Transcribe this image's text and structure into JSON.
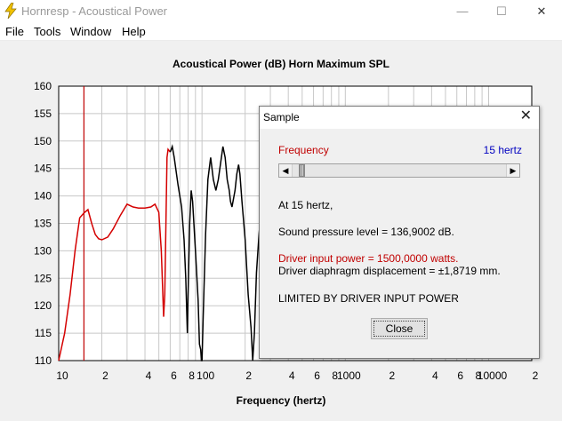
{
  "window": {
    "title": "Hornresp - Acoustical Power"
  },
  "window_controls": {
    "minimize": "—",
    "maximize": "☐",
    "close": "✕"
  },
  "menu": {
    "items": [
      "File",
      "Tools",
      "Window",
      "Help"
    ]
  },
  "colors": {
    "grid": "#c8c8c8",
    "curve_red": "#d40000",
    "curve_black": "#000000",
    "marker": "#c00000",
    "freq_value": "#0000c0"
  },
  "chart_data": {
    "type": "line",
    "title": "Acoustical Power (dB)   Horn    Maximum SPL",
    "xlabel": "Frequency (hertz)",
    "ylabel": "",
    "x_scale": "log",
    "xlim": [
      10,
      20000
    ],
    "ylim": [
      110,
      160
    ],
    "yticks": [
      "160",
      "155",
      "150",
      "145",
      "140",
      "135",
      "130",
      "125",
      "120",
      "115",
      "110"
    ],
    "xticks": [
      {
        "v": 10,
        "t": "10"
      },
      {
        "v": 20,
        "t": "2"
      },
      {
        "v": 40,
        "t": "4"
      },
      {
        "v": 60,
        "t": "6"
      },
      {
        "v": 80,
        "t": "8"
      },
      {
        "v": 100,
        "t": "100"
      },
      {
        "v": 200,
        "t": "2"
      },
      {
        "v": 400,
        "t": "4"
      },
      {
        "v": 600,
        "t": "6"
      },
      {
        "v": 800,
        "t": "8"
      },
      {
        "v": 1000,
        "t": "1000"
      },
      {
        "v": 2000,
        "t": "2"
      },
      {
        "v": 4000,
        "t": "4"
      },
      {
        "v": 6000,
        "t": "6"
      },
      {
        "v": 8000,
        "t": "8"
      },
      {
        "v": 10000,
        "t": "10000"
      },
      {
        "v": 20000,
        "t": "2"
      }
    ],
    "marker_frequency": 15,
    "series": [
      {
        "color": "#d40000",
        "points": [
          [
            10,
            110
          ],
          [
            11,
            115
          ],
          [
            12,
            122
          ],
          [
            13,
            130
          ],
          [
            14,
            136
          ],
          [
            15,
            136.9
          ],
          [
            16,
            137.5
          ],
          [
            17,
            135
          ],
          [
            18,
            133
          ],
          [
            19,
            132.2
          ],
          [
            20,
            132
          ],
          [
            22,
            132.5
          ],
          [
            24,
            134
          ],
          [
            27,
            136.5
          ],
          [
            30,
            138.5
          ],
          [
            33,
            138
          ],
          [
            36,
            137.8
          ],
          [
            40,
            137.8
          ],
          [
            44,
            138
          ],
          [
            47,
            138.5
          ],
          [
            50,
            137
          ],
          [
            52,
            130
          ],
          [
            54,
            118
          ],
          [
            55,
            122
          ],
          [
            56,
            135
          ],
          [
            57,
            147
          ],
          [
            58,
            148.5
          ],
          [
            60,
            148
          ]
        ]
      },
      {
        "color": "#000000",
        "points": [
          [
            60,
            148
          ],
          [
            62,
            149
          ],
          [
            64,
            147
          ],
          [
            68,
            142
          ],
          [
            72,
            138
          ],
          [
            75,
            132
          ],
          [
            77,
            125
          ],
          [
            79,
            115
          ],
          [
            80,
            122
          ],
          [
            82,
            135
          ],
          [
            84,
            141
          ],
          [
            86,
            139
          ],
          [
            90,
            130
          ],
          [
            94,
            121
          ],
          [
            96,
            113
          ],
          [
            98,
            112
          ],
          [
            99,
            110
          ],
          [
            100,
            110
          ],
          [
            102,
            118
          ],
          [
            106,
            133
          ],
          [
            110,
            143
          ],
          [
            115,
            147
          ],
          [
            120,
            143
          ],
          [
            125,
            141
          ],
          [
            130,
            143
          ],
          [
            140,
            149
          ],
          [
            145,
            147
          ],
          [
            150,
            143
          ],
          [
            155,
            141
          ],
          [
            158,
            139
          ],
          [
            162,
            138
          ],
          [
            170,
            141
          ],
          [
            175,
            144
          ],
          [
            180,
            145.7
          ],
          [
            184,
            144
          ],
          [
            190,
            139
          ],
          [
            200,
            132
          ],
          [
            210,
            122
          ],
          [
            220,
            116
          ],
          [
            226,
            110
          ],
          [
            232,
            115
          ],
          [
            240,
            126
          ],
          [
            250,
            133
          ],
          [
            260,
            138
          ]
        ]
      }
    ]
  },
  "dialog": {
    "title": "Sample",
    "close_glyph": "✕",
    "frequency_label": "Frequency",
    "frequency_value": "15 hertz",
    "scroll_left": "◀",
    "scroll_right": "▶",
    "slider_value": 15,
    "line_at": "At 15 hertz,",
    "line_spl": "Sound pressure level = 136,9002 dB.",
    "line_power": "Driver input power = 1500,0000 watts.",
    "line_displacement": "Driver diaphragm displacement = ±1,8719 mm.",
    "line_limited": "LIMITED BY DRIVER INPUT POWER",
    "close_label": "Close"
  }
}
